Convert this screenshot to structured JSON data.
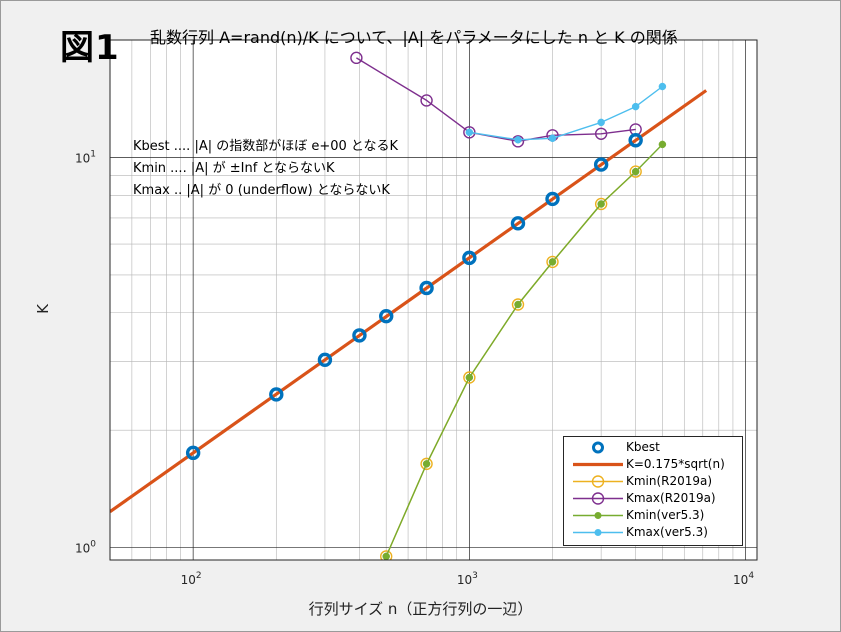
{
  "figure_label": "図1",
  "title": "乱数行列 A=rand(n)/K について、|A| をパラメータにした n と K の関係",
  "xlabel": "行列サイズ n（正方行列の一辺）",
  "ylabel": "K",
  "notes": [
    "Kbest .... |A| の指数部がほぼ e+00 となるK",
    "Kmin  .... |A| が ±Inf とならないK",
    "Kmax  .. |A| が 0 (underflow) とならないK"
  ],
  "legend": [
    {
      "label": "Kbest",
      "color": "#0072bd",
      "marker": "circle-thick",
      "line": false
    },
    {
      "label": "K=0.175*sqrt(n)",
      "color": "#d95319",
      "marker": "none",
      "line": true
    },
    {
      "label": "Kmin(R2019a)",
      "color": "#edb120",
      "marker": "circle",
      "line": true
    },
    {
      "label": "Kmax(R2019a)",
      "color": "#7e2f8e",
      "marker": "circle",
      "line": true
    },
    {
      "label": "Kmin(ver5.3)",
      "color": "#77ac30",
      "marker": "dot",
      "line": true
    },
    {
      "label": "Kmax(ver5.3)",
      "color": "#4dbeee",
      "marker": "dot",
      "line": true
    }
  ],
  "chart_data": {
    "type": "line",
    "xscale": "log",
    "yscale": "log",
    "xlim": [
      50,
      11000
    ],
    "ylim": [
      0.93,
      20
    ],
    "xticks": [
      100,
      1000,
      10000
    ],
    "xtick_labels": [
      {
        "base": "10",
        "exp": "2"
      },
      {
        "base": "10",
        "exp": "3"
      },
      {
        "base": "10",
        "exp": "4"
      }
    ],
    "yticks": [
      1,
      10
    ],
    "ytick_labels": [
      {
        "base": "10",
        "exp": "0"
      },
      {
        "base": "10",
        "exp": "1"
      }
    ],
    "grid": true,
    "minor_grid": true,
    "legend_position": "bottom-right",
    "series": [
      {
        "name": "Kbest",
        "color": "#0072bd",
        "marker": "circle-thick",
        "line": false,
        "x": [
          100,
          200,
          300,
          400,
          500,
          700,
          1000,
          1500,
          2000,
          3000,
          4000
        ],
        "y": [
          1.75,
          2.47,
          3.03,
          3.5,
          3.92,
          4.63,
          5.53,
          6.78,
          7.83,
          9.59,
          11.07
        ]
      },
      {
        "name": "K=0.175*sqrt(n)",
        "color": "#d95319",
        "marker": "none",
        "line": true,
        "x": [
          50,
          7200
        ],
        "y": [
          1.237,
          14.85
        ]
      },
      {
        "name": "Kmin(R2019a)",
        "color": "#edb120",
        "marker": "circle",
        "line": true,
        "x": [
          500,
          700,
          1000,
          1500,
          2000,
          3000,
          4000
        ],
        "y": [
          0.95,
          1.64,
          2.73,
          4.2,
          5.4,
          7.6,
          9.2
        ]
      },
      {
        "name": "Kmax(R2019a)",
        "color": "#7e2f8e",
        "marker": "circle",
        "line": true,
        "x": [
          390,
          700,
          1000,
          1500,
          2000,
          3000,
          4000
        ],
        "y": [
          18.0,
          14.0,
          11.6,
          11.0,
          11.4,
          11.5,
          11.8
        ]
      },
      {
        "name": "Kmin(ver5.3)",
        "color": "#77ac30",
        "marker": "dot",
        "line": true,
        "x": [
          500,
          700,
          1000,
          1500,
          2000,
          3000,
          4000,
          5000
        ],
        "y": [
          0.95,
          1.64,
          2.73,
          4.2,
          5.4,
          7.6,
          9.2,
          10.8
        ]
      },
      {
        "name": "Kmax(ver5.3)",
        "color": "#4dbeee",
        "marker": "dot",
        "line": true,
        "x": [
          1000,
          1500,
          2000,
          3000,
          4000,
          5000
        ],
        "y": [
          11.6,
          11.1,
          11.2,
          12.3,
          13.5,
          15.2
        ]
      }
    ]
  }
}
